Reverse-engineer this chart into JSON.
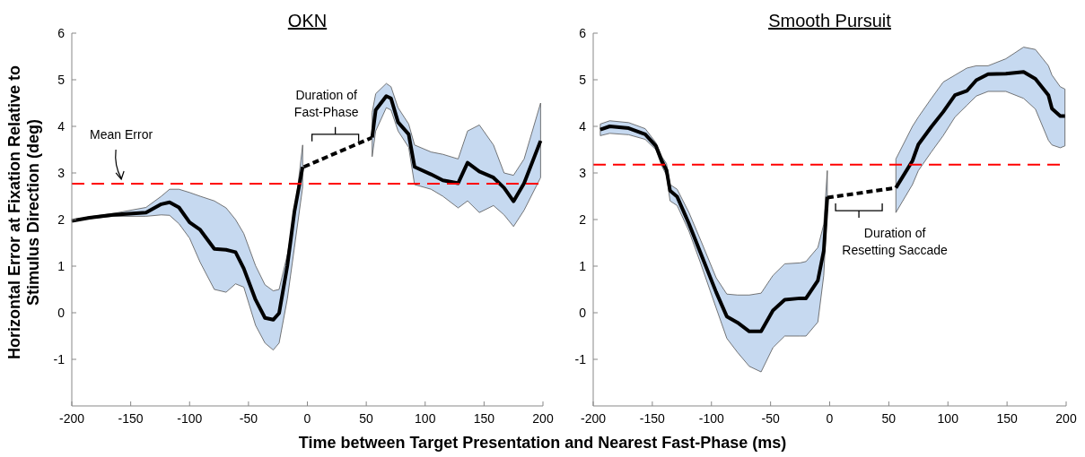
{
  "chart_data": [
    {
      "type": "line",
      "title": "OKN",
      "xlabel": "Time between Target Presentation and Nearest Fast-Phase (ms)",
      "ylabel": "Horizontal Error at Fixation Relative to\nStimulus Direction (deg)",
      "xlim": [
        -200,
        200
      ],
      "xticks": [
        -200,
        -150,
        -100,
        -50,
        0,
        50,
        100,
        150,
        200
      ],
      "ylim": [
        -2,
        6
      ],
      "yticks": [
        -1,
        0,
        1,
        2,
        3,
        4,
        5,
        6
      ],
      "grid": false,
      "marker": "none",
      "series": [
        {
          "color": "#000000",
          "line_style": "solid",
          "x": [
            -200,
            -185,
            -165,
            -137,
            -124,
            -117,
            -109,
            -100,
            -91,
            -79,
            -69,
            -61,
            -54,
            -44,
            -36,
            -29,
            -24,
            -17,
            -11,
            -4
          ],
          "values": [
            1.97,
            2.04,
            2.1,
            2.15,
            2.33,
            2.37,
            2.26,
            1.94,
            1.78,
            1.37,
            1.35,
            1.3,
            0.95,
            0.28,
            -0.11,
            -0.15,
            -0.01,
            1.01,
            2.17,
            3.13
          ],
          "upper": [
            1.98,
            2.06,
            2.13,
            2.26,
            2.5,
            2.65,
            2.65,
            2.58,
            2.5,
            2.4,
            2.25,
            2.0,
            1.7,
            1.01,
            0.6,
            0.47,
            0.5,
            1.25,
            2.1,
            3.6
          ],
          "lower": [
            1.96,
            2.02,
            2.07,
            2.07,
            2.1,
            2.09,
            1.91,
            1.6,
            1.08,
            0.5,
            0.44,
            0.62,
            0.55,
            -0.27,
            -0.65,
            -0.8,
            -0.65,
            0.3,
            1.4,
            2.7
          ]
        },
        {
          "color": "#000000",
          "line_style": "dashed",
          "x": [
            -3,
            55
          ],
          "values": [
            3.13,
            3.76
          ]
        },
        {
          "color": "#000000",
          "line_style": "solid",
          "x": [
            55,
            58,
            67,
            71,
            77,
            86,
            91,
            105,
            115,
            128,
            136,
            146,
            158,
            167,
            175,
            184,
            198
          ],
          "values": [
            3.76,
            4.35,
            4.65,
            4.6,
            4.09,
            3.83,
            3.13,
            2.97,
            2.84,
            2.78,
            3.22,
            3.03,
            2.9,
            2.68,
            2.39,
            2.78,
            3.69
          ],
          "upper": [
            4.3,
            4.7,
            4.92,
            4.85,
            4.4,
            4.05,
            3.6,
            3.45,
            3.4,
            3.3,
            3.9,
            4.03,
            3.6,
            3.0,
            2.95,
            3.3,
            4.5
          ],
          "lower": [
            3.35,
            3.9,
            4.4,
            4.35,
            3.9,
            3.55,
            2.75,
            2.65,
            2.5,
            2.25,
            2.4,
            2.15,
            2.3,
            2.1,
            1.85,
            2.2,
            2.9
          ]
        }
      ],
      "ref_lines": [
        {
          "axis": "y",
          "value": 2.77,
          "color": "#ff0000",
          "line_style": "dashed"
        }
      ],
      "annotations": [
        "Mean Error",
        "Duration of\nFast-Phase"
      ]
    },
    {
      "type": "line",
      "title": "Smooth Pursuit",
      "xlim": [
        -200,
        200
      ],
      "xticks": [
        -200,
        -150,
        -100,
        -50,
        0,
        50,
        100,
        150,
        200
      ],
      "ylim": [
        -2,
        6
      ],
      "yticks": [
        -1,
        0,
        1,
        2,
        3,
        4,
        5,
        6
      ],
      "grid": false,
      "marker": "none",
      "series": [
        {
          "color": "#000000",
          "line_style": "solid",
          "x": [
            -194,
            -186,
            -170,
            -156,
            -147,
            -142,
            -138,
            -135,
            -129,
            -119,
            -109,
            -96,
            -87,
            -78,
            -68,
            -58,
            -48,
            -38,
            -25,
            -20,
            -10,
            -5,
            -2
          ],
          "values": [
            3.93,
            4.0,
            3.96,
            3.83,
            3.58,
            3.26,
            3.06,
            2.62,
            2.49,
            1.91,
            1.27,
            0.44,
            -0.08,
            -0.21,
            -0.4,
            -0.4,
            0.05,
            0.28,
            0.31,
            0.31,
            0.69,
            1.33,
            2.49
          ],
          "upper": [
            4.05,
            4.12,
            4.08,
            3.95,
            3.65,
            3.35,
            3.2,
            2.75,
            2.65,
            2.15,
            1.55,
            0.75,
            0.4,
            0.38,
            0.38,
            0.42,
            0.8,
            1.05,
            1.07,
            1.1,
            1.4,
            1.9,
            3.05
          ],
          "lower": [
            3.8,
            3.85,
            3.82,
            3.72,
            3.5,
            3.15,
            2.95,
            2.4,
            2.3,
            1.75,
            1.05,
            0.1,
            -0.55,
            -0.85,
            -1.15,
            -1.27,
            -0.75,
            -0.5,
            -0.5,
            -0.5,
            -0.2,
            0.8,
            2.3
          ]
        },
        {
          "color": "#000000",
          "line_style": "dashed",
          "x": [
            -2,
            56
          ],
          "values": [
            2.47,
            2.68
          ]
        },
        {
          "color": "#000000",
          "line_style": "solid",
          "x": [
            56,
            70,
            75,
            86,
            96,
            106,
            116,
            124,
            134,
            149,
            164,
            174,
            185,
            188,
            195,
            199
          ],
          "values": [
            2.68,
            3.26,
            3.61,
            3.99,
            4.31,
            4.67,
            4.76,
            4.99,
            5.12,
            5.13,
            5.17,
            5.02,
            4.67,
            4.38,
            4.22,
            4.22
          ],
          "upper": [
            3.3,
            4.0,
            4.2,
            4.6,
            4.95,
            5.1,
            5.25,
            5.3,
            5.3,
            5.45,
            5.7,
            5.65,
            5.3,
            5.1,
            4.85,
            4.8
          ],
          "lower": [
            2.15,
            2.75,
            3.05,
            3.45,
            3.8,
            4.2,
            4.45,
            4.65,
            4.75,
            4.75,
            4.6,
            4.37,
            3.7,
            3.6,
            3.54,
            3.58
          ]
        }
      ],
      "ref_lines": [
        {
          "axis": "y",
          "value": 3.18,
          "color": "#ff0000",
          "line_style": "dashed"
        }
      ],
      "annotations": [
        "Duration of\nResetting Saccade"
      ]
    }
  ]
}
